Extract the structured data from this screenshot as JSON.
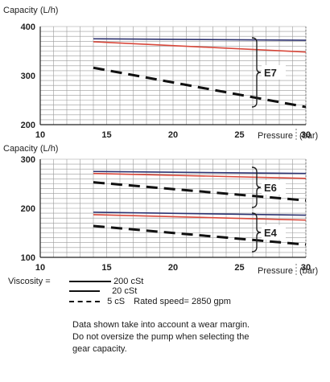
{
  "chart_data": [
    {
      "type": "line",
      "ylabel": "Capacity (L/h)",
      "xlabel": "Pressure",
      "xlabel_unit": "(bar)",
      "xlim": [
        10,
        30
      ],
      "ylim": [
        200,
        400
      ],
      "x_ticks": [
        10,
        15,
        20,
        25,
        30
      ],
      "y_ticks": [
        200,
        300,
        400
      ],
      "grid": true,
      "groups": [
        {
          "label": "E7",
          "series": [
            {
              "name": "200 cSt",
              "color": "#2d3270",
              "style": "solid",
              "x": [
                14,
                30
              ],
              "y": [
                375,
                372
              ]
            },
            {
              "name": "20 cSt",
              "color": "#d9483b",
              "style": "solid",
              "x": [
                14,
                30
              ],
              "y": [
                369,
                348
              ]
            },
            {
              "name": "5 cS",
              "color": "#111111",
              "style": "dashed",
              "x": [
                14,
                30
              ],
              "y": [
                316,
                236
              ]
            }
          ]
        }
      ]
    },
    {
      "type": "line",
      "ylabel": "Capacity (L/h)",
      "xlabel": "Pressure",
      "xlabel_unit": "(bar)",
      "xlim": [
        10,
        30
      ],
      "ylim": [
        100,
        300
      ],
      "x_ticks": [
        10,
        15,
        20,
        25,
        30
      ],
      "y_ticks": [
        100,
        200,
        300
      ],
      "grid": true,
      "groups": [
        {
          "label": "E6",
          "series": [
            {
              "name": "200 cSt",
              "color": "#2d3270",
              "style": "solid",
              "x": [
                14,
                30
              ],
              "y": [
                275,
                271
              ]
            },
            {
              "name": "20 cSt",
              "color": "#d9483b",
              "style": "solid",
              "x": [
                14,
                30
              ],
              "y": [
                271,
                261
              ]
            },
            {
              "name": "5 cS",
              "color": "#111111",
              "style": "dashed",
              "x": [
                14,
                30
              ],
              "y": [
                253,
                216
              ]
            }
          ]
        },
        {
          "label": "E4",
          "series": [
            {
              "name": "200 cSt",
              "color": "#2d3270",
              "style": "solid",
              "x": [
                14,
                30
              ],
              "y": [
                192,
                186
              ]
            },
            {
              "name": "20 cSt",
              "color": "#d9483b",
              "style": "solid",
              "x": [
                14,
                30
              ],
              "y": [
                187,
                176
              ]
            },
            {
              "name": "5 cS",
              "color": "#111111",
              "style": "dashed",
              "x": [
                14,
                30
              ],
              "y": [
                164,
                126
              ]
            }
          ]
        }
      ]
    }
  ],
  "legend": {
    "title": "Viscosity =",
    "items": [
      {
        "label": "200 cSt",
        "style": "solid"
      },
      {
        "label": "20 cSt",
        "style": "solid"
      },
      {
        "label": "5 cS",
        "style": "dashed"
      }
    ],
    "rated_speed": "Rated speed= 2850 gpm"
  },
  "note": [
    "Data shown take into account a wear margin.",
    "Do not oversize the pump when selecting the",
    "gear capacity."
  ]
}
